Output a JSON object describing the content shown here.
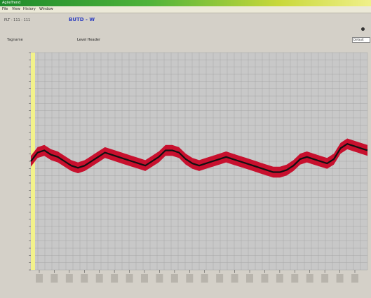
{
  "window": {
    "title": "AgileTrend"
  },
  "menu": {
    "items": [
      "File",
      "View",
      "History",
      "Window"
    ]
  },
  "toolbar": {
    "path": "PLT - 111 - 111",
    "mode": "BUTD - W"
  },
  "info": {
    "label": "Tagname",
    "value": "Level Header",
    "dropdown_value": "Default"
  },
  "colors": {
    "plot_background": "#c8c8c8",
    "grid": "#a6a6a6",
    "trend_band": "#c8102e",
    "trend_line": "#111111",
    "cursor_bar": "#f2f28a"
  },
  "chart_data": {
    "type": "line",
    "x": [
      0,
      0.02,
      0.04,
      0.06,
      0.08,
      0.1,
      0.12,
      0.14,
      0.16,
      0.18,
      0.2,
      0.22,
      0.24,
      0.26,
      0.28,
      0.3,
      0.32,
      0.34,
      0.36,
      0.38,
      0.4,
      0.42,
      0.44,
      0.46,
      0.48,
      0.5,
      0.52,
      0.54,
      0.56,
      0.58,
      0.6,
      0.62,
      0.64,
      0.66,
      0.68,
      0.7,
      0.72,
      0.74,
      0.76,
      0.78,
      0.8,
      0.82,
      0.84,
      0.86,
      0.88,
      0.9,
      0.92,
      0.94,
      0.96,
      0.98,
      1.0
    ],
    "series": [
      {
        "values": [
          50,
          54,
          55,
          53,
          52,
          50,
          48,
          47,
          48,
          50,
          52,
          54,
          53,
          52,
          51,
          50,
          49,
          48,
          50,
          52,
          55,
          55,
          54,
          51,
          49,
          48,
          49,
          50,
          51,
          52,
          51,
          50,
          49,
          48,
          47,
          46,
          45,
          45,
          46,
          48,
          51,
          52,
          51,
          50,
          49,
          51,
          56,
          58,
          57,
          56,
          55
        ],
        "band_halfwidth": 2.5
      }
    ],
    "ylim": [
      0,
      100
    ],
    "xlim": [
      0,
      1
    ],
    "grid": true,
    "x_tick_count": 22
  }
}
